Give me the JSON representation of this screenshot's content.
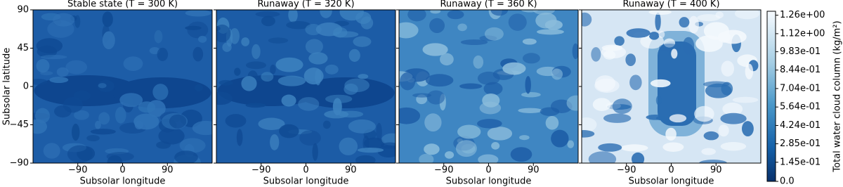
{
  "chart_data": [
    {
      "type": "contour",
      "title": "Stable state (T = 300 K)",
      "xlabel": "Subsolar longitude",
      "ylabel": "Subsolar latitude",
      "xlim": [
        -180,
        180
      ],
      "xticks": [
        {
          "value": -90,
          "label": "−90"
        },
        0,
        90
      ],
      "ylim": [
        -90,
        90
      ],
      "yticks": [
        {
          "value": -90,
          "label": "−90"
        },
        {
          "value": -45,
          "label": "−45"
        },
        0,
        45,
        90
      ]
    },
    {
      "type": "contour",
      "title": "Runaway (T = 320 K)",
      "xlabel": "Subsolar longitude",
      "xlim": [
        -180,
        180
      ],
      "xticks": [
        {
          "value": -90,
          "label": "−90"
        },
        0,
        90
      ],
      "ylim": [
        -90,
        90
      ]
    },
    {
      "type": "contour",
      "title": "Runaway (T = 360 K)",
      "xlabel": "Subsolar longitude",
      "xlim": [
        -180,
        180
      ],
      "xticks": [
        {
          "value": -90,
          "label": "−90"
        },
        0,
        90
      ],
      "ylim": [
        -90,
        90
      ]
    },
    {
      "type": "contour",
      "title": "Runaway (T = 400 K)",
      "xlabel": "Subsolar longitude",
      "xlim": [
        -180,
        180
      ],
      "xticks": [
        {
          "value": -90,
          "label": "−90"
        },
        0,
        90
      ],
      "ylim": [
        -90,
        90
      ]
    }
  ],
  "colorbar": {
    "label": "Total water cloud column (kg/m²)",
    "lim": [
      0,
      1.29
    ],
    "ticks": [
      {
        "value": 0,
        "label": "0.0"
      },
      {
        "value": 0.145,
        "label": "1.45e-01"
      },
      {
        "value": 0.285,
        "label": "2.85e-01"
      },
      {
        "value": 0.424,
        "label": "4.24e-01"
      },
      {
        "value": 0.564,
        "label": "5.64e-01"
      },
      {
        "value": 0.704,
        "label": "7.04e-01"
      },
      {
        "value": 0.844,
        "label": "8.44e-01"
      },
      {
        "value": 0.983,
        "label": "9.83e-01"
      },
      {
        "value": 1.12,
        "label": "1.12e+00"
      },
      {
        "value": 1.26,
        "label": "1.26e+00"
      }
    ]
  }
}
